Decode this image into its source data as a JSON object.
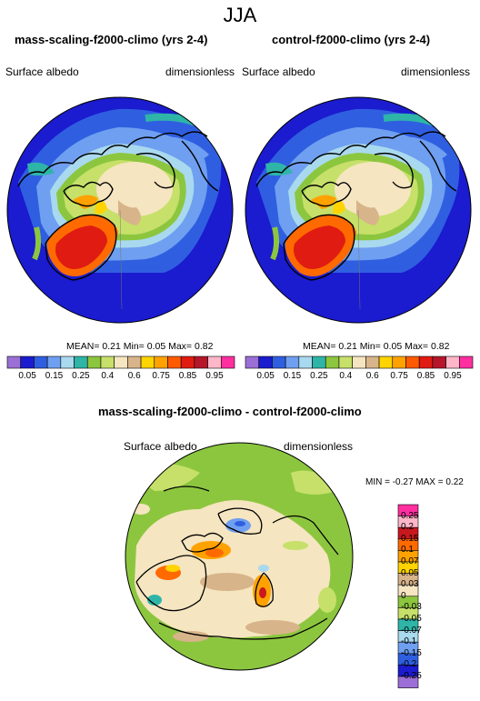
{
  "main_title": "JJA",
  "panels": [
    {
      "title": "mass-scaling-f2000-climo (yrs 2-4)",
      "field": "Surface albedo",
      "units": "dimensionless",
      "stats": {
        "mean_label": "MEAN=",
        "mean": "0.21",
        "min_label": "Min=",
        "min": "0.05",
        "max_label": "Max=",
        "max": "0.82"
      }
    },
    {
      "title": "control-f2000-climo (yrs 2-4)",
      "field": "Surface albedo",
      "units": "dimensionless",
      "stats": {
        "mean_label": "MEAN=",
        "mean": "0.21",
        "min_label": "Min=",
        "min": "0.05",
        "max_label": "Max=",
        "max": "0.82"
      }
    }
  ],
  "colorbar": {
    "ticks": [
      "0.05",
      "0.15",
      "0.25",
      "0.4",
      "0.6",
      "0.75",
      "0.85",
      "0.95"
    ],
    "colors": [
      "#9b6fd6",
      "#1b1bcf",
      "#2f5fe0",
      "#6f9ff0",
      "#a9d9ee",
      "#2eb5a8",
      "#8cc63f",
      "#c6e06a",
      "#f5e5c0",
      "#d8b48a",
      "#ffd400",
      "#ffa200",
      "#ff5a00",
      "#e01b12",
      "#b5162a",
      "#ffb6c8",
      "#ff2fa0"
    ]
  },
  "diff": {
    "title": "mass-scaling-f2000-climo - control-f2000-climo",
    "field": "Surface albedo",
    "units": "dimensionless",
    "minmax_text": "MIN = -0.27 MAX =  0.22",
    "legend": [
      {
        "label": "0.25",
        "color": "#ff2fa0"
      },
      {
        "label": "0.2",
        "color": "#ffb6c8"
      },
      {
        "label": "0.15",
        "color": "#c8181e"
      },
      {
        "label": "0.1",
        "color": "#ff6a00"
      },
      {
        "label": "0.07",
        "color": "#ffa200"
      },
      {
        "label": "0.05",
        "color": "#ffd400"
      },
      {
        "label": "0.03",
        "color": "#d8b48a"
      },
      {
        "label": "0",
        "color": "#f5e5c0"
      },
      {
        "label": "-0.03",
        "color": "#8cc63f"
      },
      {
        "label": "-0.05",
        "color": "#c6e06a"
      },
      {
        "label": "-0.07",
        "color": "#2eb5a8"
      },
      {
        "label": "-0.1",
        "color": "#a9d9ee"
      },
      {
        "label": "-0.15",
        "color": "#6f9ff0"
      },
      {
        "label": "-0.2",
        "color": "#2f5fe0"
      },
      {
        "label": "-0.25",
        "color": "#1b1bcf"
      },
      {
        "label": "",
        "color": "#9b6fd6"
      }
    ]
  }
}
